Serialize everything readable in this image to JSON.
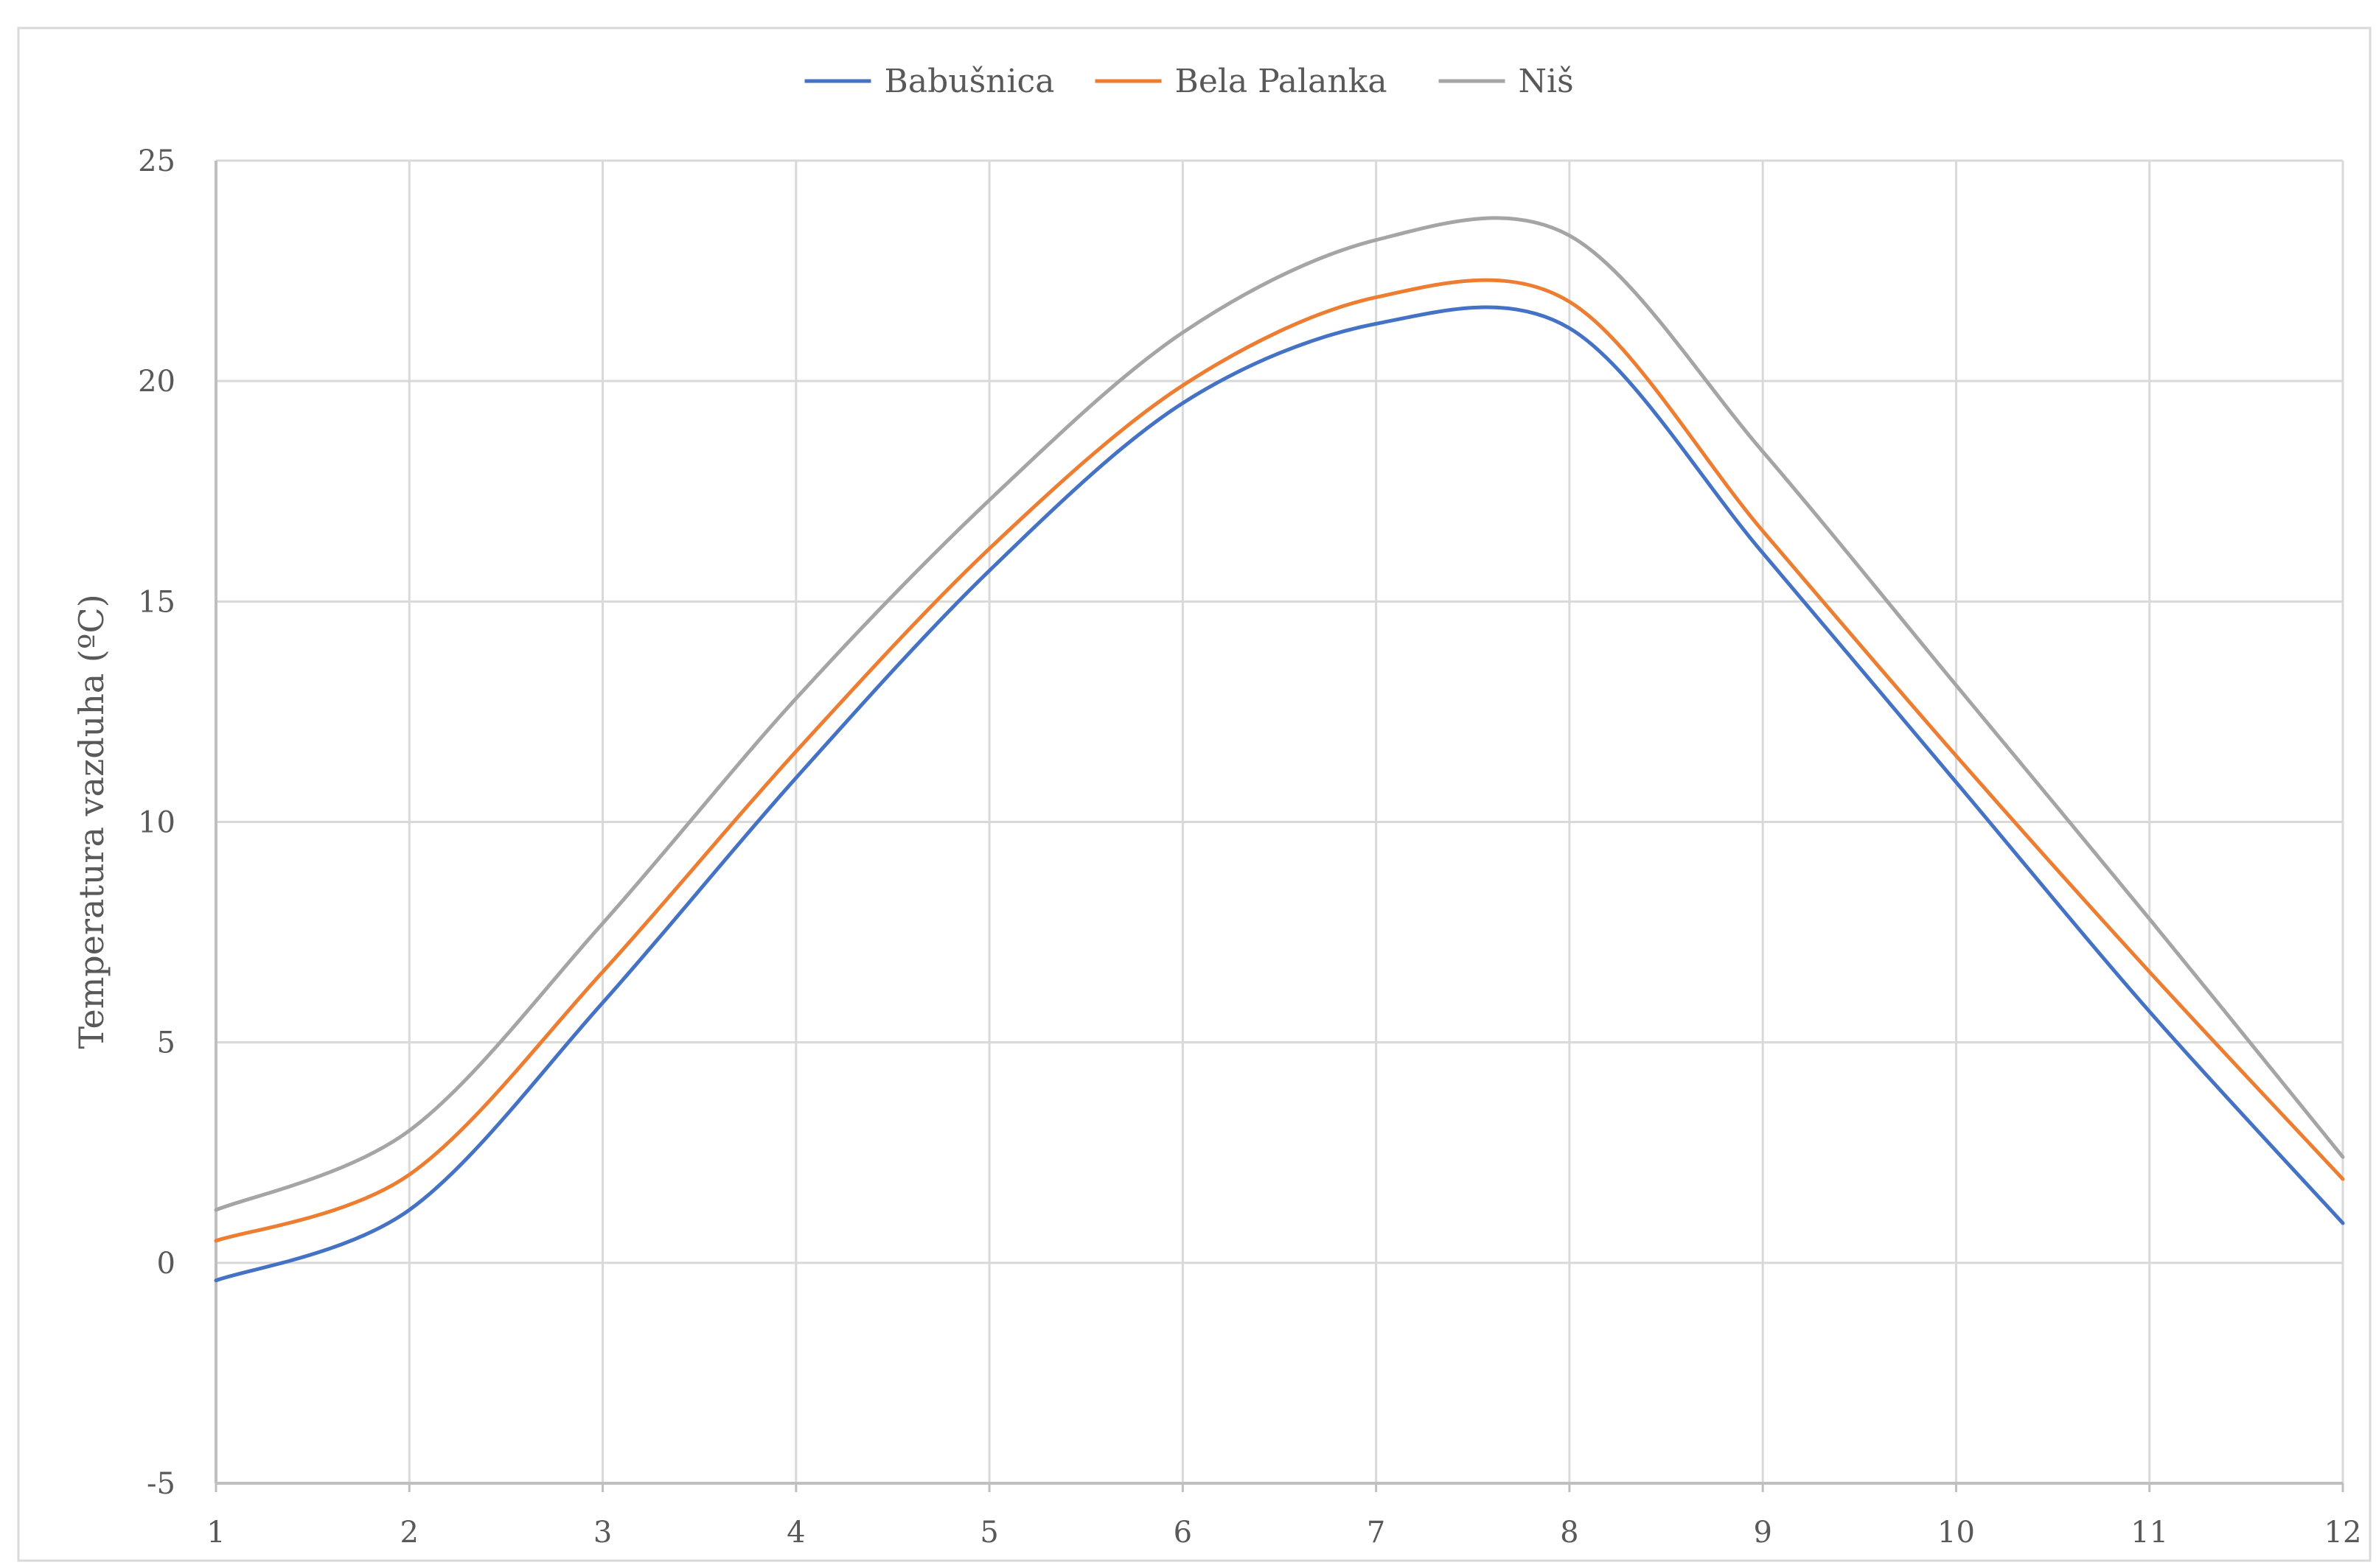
{
  "chart_data": {
    "type": "line",
    "title": "",
    "xlabel": "",
    "ylabel": "Temperatura vazduha (ºC)",
    "x": [
      1,
      2,
      3,
      4,
      5,
      6,
      7,
      8,
      9,
      10,
      11,
      12
    ],
    "x_ticks": [
      "1",
      "2",
      "3",
      "4",
      "5",
      "6",
      "7",
      "8",
      "9",
      "10",
      "11",
      "12"
    ],
    "y_ticks": [
      "-5",
      "0",
      "5",
      "10",
      "15",
      "20",
      "25"
    ],
    "xlim": [
      1,
      12
    ],
    "ylim": [
      -5,
      25
    ],
    "grid": true,
    "legend_position": "top-center",
    "series": [
      {
        "name": "Babušnica",
        "color": "#4472C4",
        "values": [
          -0.4,
          1.2,
          5.9,
          11.0,
          15.7,
          19.5,
          21.3,
          21.2,
          16.1,
          10.9,
          5.7,
          0.9
        ]
      },
      {
        "name": "Bela Palanka",
        "color": "#ED7D31",
        "values": [
          0.5,
          2.0,
          6.6,
          11.6,
          16.2,
          19.9,
          21.9,
          21.8,
          16.6,
          11.5,
          6.6,
          1.9
        ]
      },
      {
        "name": "Niš",
        "color": "#A5A5A5",
        "values": [
          1.2,
          3.0,
          7.7,
          12.8,
          17.3,
          21.1,
          23.2,
          23.3,
          18.4,
          13.1,
          7.8,
          2.4
        ]
      }
    ]
  }
}
